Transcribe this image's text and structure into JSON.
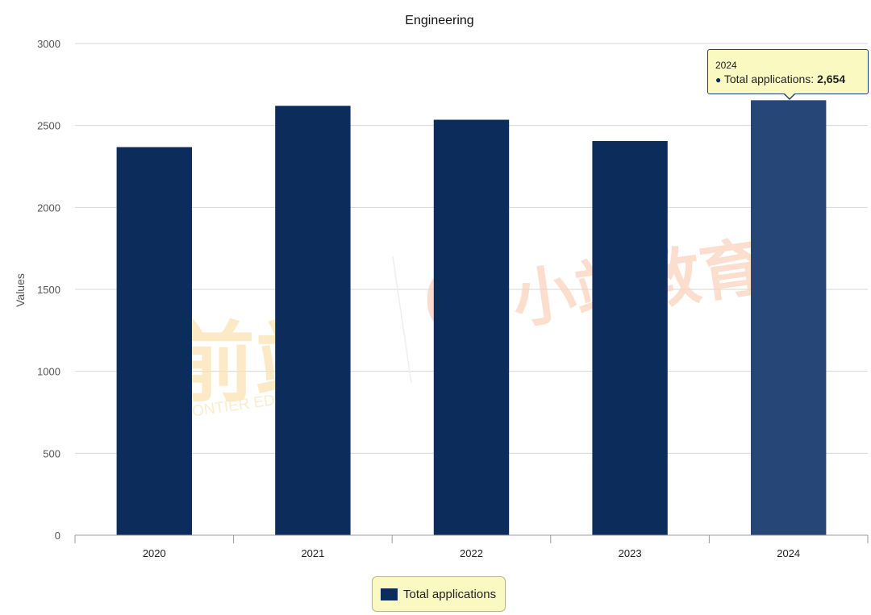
{
  "chart_data": {
    "type": "bar",
    "title": "Engineering",
    "xlabel": "",
    "ylabel": "Values",
    "categories": [
      "2020",
      "2021",
      "2022",
      "2023",
      "2024"
    ],
    "series": [
      {
        "name": "Total applications",
        "values": [
          2368,
          2620,
          2535,
          2405,
          2654
        ],
        "color": "#0c2d5c",
        "hover_color": "#254677"
      }
    ],
    "ylim": [
      0,
      3000
    ],
    "yticks": [
      "0",
      "500",
      "1000",
      "1500",
      "2000",
      "2500",
      "3000"
    ],
    "grid": true,
    "legend_position": "bottom-center"
  },
  "tooltip": {
    "category": "2024",
    "series_label": "Total applications: ",
    "value": "2,654",
    "active_index": 4
  },
  "watermark": {
    "left_cn": "前站",
    "left_en": "FRONTIER EDUCATION",
    "right_cn": "小站教育"
  },
  "colors": {
    "bar": "#0c2d5c",
    "bar_hover": "#254677",
    "tooltip_bg": "#fbf9c2",
    "grid": "#d6d6d6"
  }
}
